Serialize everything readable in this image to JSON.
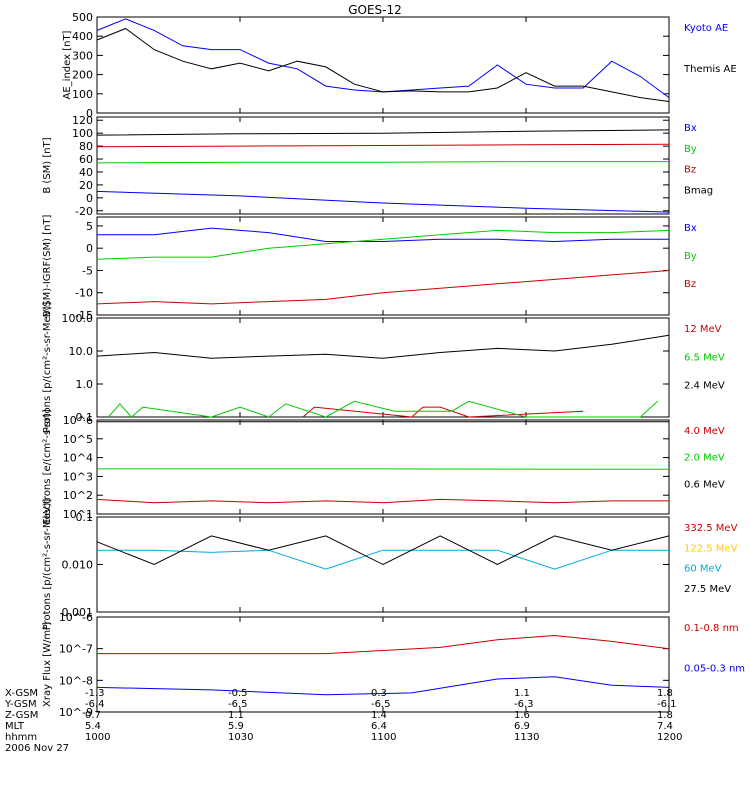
{
  "title": "GOES-12",
  "date": "2006 Nov 27",
  "x_time": [
    1000,
    1030,
    1100,
    1130,
    1200
  ],
  "footer": {
    "rows": [
      {
        "label": "X-GSM",
        "values": [
          "-1.3",
          "-0.5",
          "0.3",
          "1.1",
          "1.8"
        ]
      },
      {
        "label": "Y-GSM",
        "values": [
          "-6.4",
          "-6.5",
          "-6.5",
          "-6.3",
          "-6.1"
        ]
      },
      {
        "label": "Z-GSM",
        "values": [
          "0.7",
          "1.1",
          "1.4",
          "1.6",
          "1.8"
        ]
      },
      {
        "label": "MLT",
        "values": [
          "5.4",
          "5.9",
          "6.4",
          "6.9",
          "7.4"
        ]
      },
      {
        "label": "hhmm",
        "values": [
          "1000",
          "1030",
          "1100",
          "1130",
          "1200"
        ]
      }
    ]
  },
  "chart_data": [
    {
      "type": "line",
      "ylabel": "AE_index [nT]",
      "ylim": [
        0,
        500
      ],
      "yscale": "linear",
      "ticks": [
        0,
        100,
        200,
        300,
        400,
        500
      ],
      "series": [
        {
          "name": "Kyoto AE",
          "color": "#0000ff",
          "x": [
            0,
            0.05,
            0.1,
            0.15,
            0.2,
            0.25,
            0.3,
            0.35,
            0.4,
            0.45,
            0.5,
            0.55,
            0.6,
            0.65,
            0.7,
            0.75,
            0.8,
            0.85,
            0.9,
            0.95,
            1
          ],
          "values": [
            430,
            490,
            430,
            350,
            330,
            330,
            260,
            230,
            140,
            120,
            110,
            120,
            130,
            140,
            250,
            150,
            130,
            130,
            270,
            190,
            80
          ]
        },
        {
          "name": "Themis AE",
          "color": "#000000",
          "x": [
            0,
            0.05,
            0.1,
            0.15,
            0.2,
            0.25,
            0.3,
            0.35,
            0.4,
            0.45,
            0.5,
            0.55,
            0.6,
            0.65,
            0.7,
            0.75,
            0.8,
            0.85,
            0.9,
            0.95,
            1
          ],
          "values": [
            380,
            440,
            330,
            270,
            230,
            260,
            220,
            270,
            240,
            150,
            110,
            115,
            110,
            110,
            130,
            210,
            140,
            140,
            110,
            80,
            60
          ]
        }
      ]
    },
    {
      "type": "line",
      "ylabel": "B (SM) [nT]",
      "ylim": [
        -25,
        125
      ],
      "yscale": "linear",
      "ticks": [
        -20,
        0,
        20,
        40,
        60,
        80,
        100,
        120
      ],
      "series": [
        {
          "name": "Bx",
          "color": "#0000ff",
          "x": [
            0,
            0.25,
            0.5,
            0.75,
            1
          ],
          "values": [
            10,
            3,
            -8,
            -16,
            -22
          ]
        },
        {
          "name": "By",
          "color": "#00cc00",
          "x": [
            0,
            0.25,
            0.5,
            0.75,
            1
          ],
          "values": [
            54,
            55,
            55,
            56,
            56
          ]
        },
        {
          "name": "Bz",
          "color": "#cc0000",
          "x": [
            0,
            0.25,
            0.5,
            0.75,
            1
          ],
          "values": [
            79,
            80,
            81,
            82,
            83
          ]
        },
        {
          "name": "Bmag",
          "color": "#000000",
          "x": [
            0,
            0.25,
            0.5,
            0.75,
            1
          ],
          "values": [
            97,
            99,
            100,
            103,
            105
          ]
        }
      ]
    },
    {
      "type": "line",
      "ylabel": "B(SM)-IGRF(SM) [nT]",
      "ylim": [
        -15,
        7
      ],
      "yscale": "linear",
      "ticks": [
        -15,
        -10,
        -5,
        0,
        5
      ],
      "series": [
        {
          "name": "Bx",
          "color": "#0000ff",
          "x": [
            0,
            0.1,
            0.2,
            0.3,
            0.4,
            0.5,
            0.6,
            0.7,
            0.8,
            0.9,
            1
          ],
          "values": [
            3,
            3,
            4.5,
            3.5,
            1.5,
            1.5,
            2,
            2,
            1.5,
            2,
            2
          ]
        },
        {
          "name": "By",
          "color": "#00cc00",
          "x": [
            0,
            0.1,
            0.2,
            0.3,
            0.4,
            0.5,
            0.6,
            0.7,
            0.8,
            0.9,
            1
          ],
          "values": [
            -2.5,
            -2,
            -2,
            0,
            1,
            2,
            3,
            4,
            3.5,
            3.5,
            4
          ]
        },
        {
          "name": "Bz",
          "color": "#cc0000",
          "x": [
            0,
            0.1,
            0.2,
            0.3,
            0.4,
            0.5,
            0.6,
            0.7,
            0.8,
            0.9,
            1
          ],
          "values": [
            -12.5,
            -12,
            -12.5,
            -12,
            -11.5,
            -10,
            -9,
            -8,
            -7,
            -6,
            -5
          ]
        }
      ]
    },
    {
      "type": "line",
      "ylabel": "Protons [p/(cm²-s-sr-MeV)]",
      "ylim": [
        0.1,
        100
      ],
      "yscale": "log",
      "ticks": [
        0.1,
        1.0,
        10.0,
        100.0
      ],
      "series": [
        {
          "name": "12 MeV",
          "color": "#cc0000",
          "x": [
            0.36,
            0.38,
            0.55,
            0.57,
            0.6,
            0.65,
            0.85
          ],
          "values": [
            0.1,
            0.2,
            0.1,
            0.2,
            0.2,
            0.1,
            0.15
          ]
        },
        {
          "name": "6.5 MeV",
          "color": "#00cc00",
          "x": [
            0.02,
            0.04,
            0.06,
            0.08,
            0.2,
            0.25,
            0.3,
            0.33,
            0.4,
            0.45,
            0.52,
            0.55,
            0.62,
            0.65,
            0.75,
            0.95,
            0.98
          ],
          "values": [
            0.1,
            0.25,
            0.1,
            0.2,
            0.1,
            0.2,
            0.1,
            0.25,
            0.1,
            0.3,
            0.15,
            0.15,
            0.15,
            0.3,
            0.1,
            0.1,
            0.3
          ]
        },
        {
          "name": "2.4 MeV",
          "color": "#000000",
          "x": [
            0,
            0.1,
            0.2,
            0.3,
            0.4,
            0.5,
            0.6,
            0.7,
            0.8,
            0.9,
            1
          ],
          "values": [
            7,
            9,
            6,
            7,
            8,
            6,
            9,
            12,
            10,
            16,
            30
          ]
        }
      ]
    },
    {
      "type": "line",
      "ylabel": "Electrons [e/(cm²-s-sr)]",
      "ylim": [
        10,
        1000000
      ],
      "yscale": "log",
      "ticks": [
        10,
        100,
        1000,
        10000,
        100000,
        1000000
      ],
      "series": [
        {
          "name": "4.0 MeV",
          "color": "#cc0000",
          "x": [
            0,
            0.1,
            0.2,
            0.3,
            0.4,
            0.5,
            0.6,
            0.7,
            0.8,
            0.9,
            1
          ],
          "values": [
            60,
            40,
            50,
            40,
            50,
            40,
            60,
            50,
            40,
            50,
            50
          ]
        },
        {
          "name": "2.0 MeV",
          "color": "#00cc00",
          "x": [
            0,
            0.5,
            1
          ],
          "values": [
            2500,
            2500,
            2400
          ]
        },
        {
          "name": "0.6 MeV",
          "color": "#000000",
          "x": [
            0,
            0.5,
            1
          ],
          "values": [
            800000,
            800000,
            800000
          ]
        }
      ]
    },
    {
      "type": "line",
      "ylabel": "Protons [p/(cm²-s-sr-MeV)]",
      "ylim": [
        0.001,
        0.1
      ],
      "yscale": "log",
      "ticks": [
        0.001,
        0.01,
        0.1
      ],
      "series": [
        {
          "name": "332.5 MeV",
          "color": "#cc0000",
          "x": [],
          "values": []
        },
        {
          "name": "122.5 MeV",
          "color": "#ffcc00",
          "x": [],
          "values": []
        },
        {
          "name": "60 MeV",
          "color": "#00aadd",
          "x": [
            0,
            0.1,
            0.2,
            0.3,
            0.4,
            0.5,
            0.6,
            0.7,
            0.8,
            0.9,
            1
          ],
          "values": [
            0.02,
            0.02,
            0.018,
            0.02,
            0.008,
            0.02,
            0.02,
            0.02,
            0.008,
            0.02,
            0.02
          ]
        },
        {
          "name": "27.5 MeV",
          "color": "#000000",
          "x": [
            0,
            0.1,
            0.2,
            0.3,
            0.4,
            0.5,
            0.6,
            0.7,
            0.8,
            0.9,
            1
          ],
          "values": [
            0.03,
            0.01,
            0.04,
            0.02,
            0.04,
            0.01,
            0.04,
            0.01,
            0.04,
            0.02,
            0.04
          ]
        }
      ]
    },
    {
      "type": "line",
      "ylabel": "Xray Flux [W/m²]",
      "ylim": [
        1e-09,
        1e-06
      ],
      "yscale": "log",
      "ticks": [
        1e-09,
        1e-08,
        1e-07,
        1e-06
      ],
      "series": [
        {
          "name": "0.1-0.8 nm",
          "color": "#cc0000",
          "x": [
            0,
            0.2,
            0.4,
            0.6,
            0.7,
            0.8,
            0.9,
            1
          ],
          "values": [
            7e-08,
            7e-08,
            7e-08,
            1.1e-07,
            1.9e-07,
            2.6e-07,
            1.7e-07,
            1e-07
          ]
        },
        {
          "name": "0.05-0.3 nm",
          "color": "#0000ff",
          "x": [
            0,
            0.2,
            0.4,
            0.55,
            0.7,
            0.8,
            0.9,
            1
          ],
          "values": [
            6e-09,
            5e-09,
            3.5e-09,
            4e-09,
            1.1e-08,
            1.3e-08,
            7e-09,
            6e-09
          ]
        }
      ]
    }
  ]
}
